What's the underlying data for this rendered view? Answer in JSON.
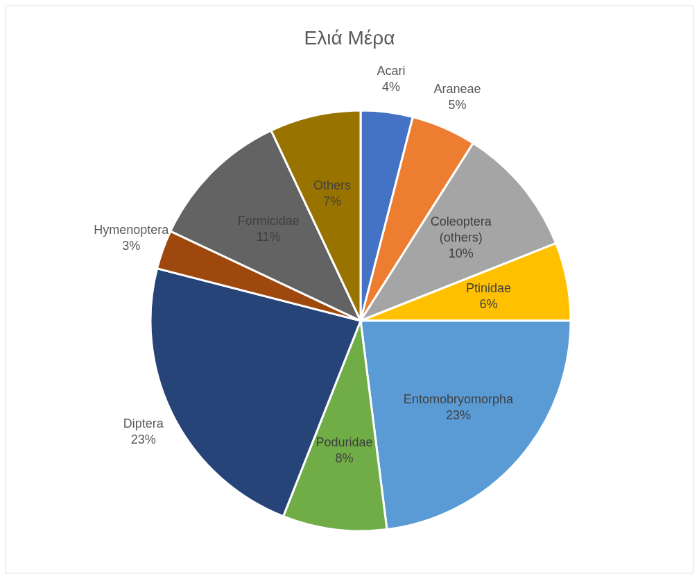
{
  "chart_data": {
    "type": "pie",
    "title": "Ελιά Μέρα",
    "categories": [
      "Acari",
      "Araneae",
      "Coleoptera (others)",
      "Ptinidae",
      "Entomobryomorpha",
      "Poduridae",
      "Diptera",
      "Hymenoptera",
      "Formicidae",
      "Others"
    ],
    "values": [
      4,
      5,
      10,
      6,
      23,
      8,
      23,
      3,
      11,
      7
    ],
    "value_labels": [
      "4%",
      "5%",
      "10%",
      "6%",
      "23%",
      "8%",
      "23%",
      "3%",
      "11%",
      "7%"
    ],
    "colors": [
      "#4472c4",
      "#ed7d31",
      "#a5a5a5",
      "#ffc000",
      "#5b9bd5",
      "#70ad47",
      "#264478",
      "#9e480e",
      "#636363",
      "#997300"
    ],
    "legend": false
  }
}
